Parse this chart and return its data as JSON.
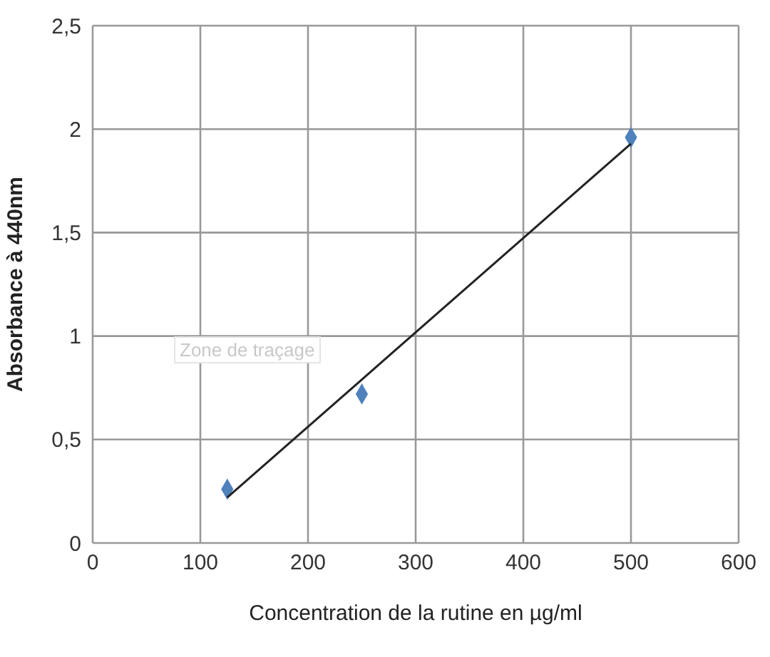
{
  "chart_data": {
    "type": "scatter",
    "xlabel": "Concentration de la rutine en µg/ml",
    "ylabel": "Absorbance à 440nm",
    "series": [
      {
        "color": "#4f81bd",
        "x": [
          125,
          250,
          500
        ],
        "values": [
          0.26,
          0.72,
          1.96
        ],
        "marker": "diamond"
      },
      {
        "type": "line",
        "color": "#222222",
        "x": [
          125,
          500
        ],
        "values": [
          0.22,
          1.93
        ],
        "marker": "none",
        "line_style": "solid"
      }
    ],
    "xlim": [
      0,
      600
    ],
    "xticks": [
      0,
      100,
      200,
      300,
      400,
      500,
      600
    ],
    "ylim": [
      0,
      2.5
    ],
    "yticks": [
      0,
      {
        "value": 0.5,
        "label": "0,5"
      },
      1,
      {
        "value": 1.5,
        "label": "1,5"
      },
      2,
      {
        "value": 2.5,
        "label": "2,5"
      }
    ],
    "grid": true,
    "annotations": [
      "Zone de traçage"
    ]
  }
}
